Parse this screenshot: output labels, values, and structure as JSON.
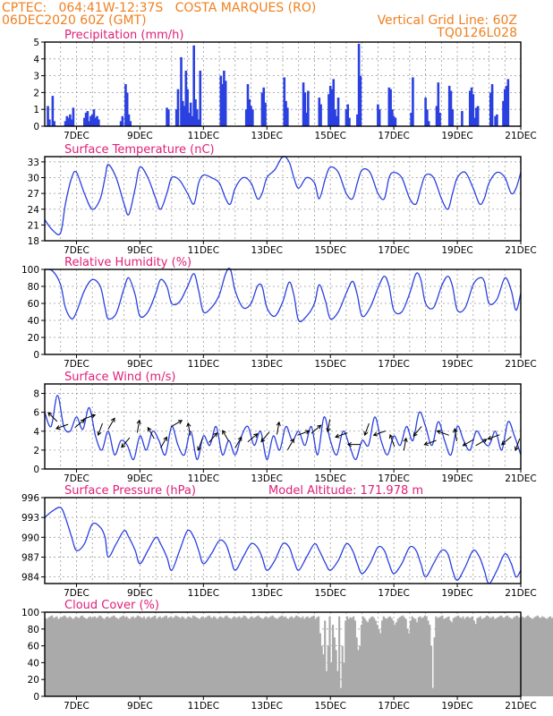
{
  "header": {
    "left_line1": "CPTEC:   064:41W-12:37S   COSTA MARQUES (RO)",
    "left_line2": "06DEC2020 60Z (GMT)",
    "right_line1": "Vertical Grid Line: 60Z",
    "right_line2": "TQ0126L028"
  },
  "colors": {
    "header": "#f08020",
    "title": "#e0207a",
    "line": "#2a40e0",
    "cloud": "#aaaaaa"
  },
  "x_axis": {
    "range": [
      6,
      21
    ],
    "tick_values": [
      7,
      9,
      11,
      13,
      15,
      17,
      19,
      21
    ],
    "tick_labels": [
      "7DEC",
      "9DEC",
      "11DEC",
      "13DEC",
      "15DEC",
      "17DEC",
      "19DEC",
      "21DEC"
    ],
    "grid_step": 0.5
  },
  "chart_data": [
    {
      "type": "bar",
      "title": "Precipitation (mm/h)",
      "ylim": [
        0,
        5
      ],
      "yticks": [
        0,
        1,
        2,
        3,
        4,
        5
      ],
      "x": [
        6.1,
        6.15,
        6.25,
        6.3,
        6.65,
        6.7,
        6.75,
        6.8,
        6.85,
        6.9,
        7.25,
        7.3,
        7.35,
        7.4,
        7.45,
        7.5,
        7.55,
        7.6,
        7.65,
        7.7,
        8.4,
        8.45,
        8.55,
        8.6,
        8.65,
        8.7,
        9.85,
        9.9,
        10.15,
        10.2,
        10.3,
        10.35,
        10.4,
        10.45,
        10.5,
        10.55,
        10.6,
        10.65,
        10.7,
        10.75,
        10.8,
        10.85,
        10.9,
        11.55,
        11.6,
        11.65,
        11.7,
        12.35,
        12.4,
        12.45,
        12.5,
        12.55,
        12.85,
        12.9,
        12.95,
        13.55,
        13.6,
        13.65,
        14.15,
        14.2,
        14.25,
        14.3,
        14.65,
        14.7,
        14.95,
        15.0,
        15.05,
        15.1,
        15.15,
        15.2,
        15.25,
        15.5,
        15.55,
        15.6,
        15.85,
        15.9,
        15.95,
        16.5,
        16.55,
        16.85,
        16.9,
        16.95,
        17.0,
        17.05,
        17.55,
        17.6,
        18.0,
        18.05,
        18.1,
        18.35,
        18.4,
        18.45,
        18.75,
        18.8,
        18.85,
        19.15,
        19.4,
        19.45,
        19.5,
        19.55,
        19.6,
        19.65,
        20.05,
        20.1,
        20.2,
        20.25,
        20.45,
        20.5,
        20.55,
        20.6
      ],
      "values": [
        1.2,
        0.4,
        1.8,
        0.3,
        0.3,
        0.6,
        0.5,
        0.7,
        0.4,
        1.1,
        0.5,
        0.8,
        0.9,
        0.3,
        0.6,
        0.7,
        1.0,
        0.5,
        0.6,
        0.4,
        0.3,
        0.6,
        2.5,
        2.0,
        0.7,
        0.3,
        1.1,
        1.0,
        1.0,
        2.2,
        4.1,
        1.5,
        1.2,
        3.3,
        2.2,
        0.8,
        1.4,
        0.6,
        4.8,
        1.6,
        1.0,
        0.4,
        3.3,
        3.0,
        2.5,
        3.3,
        2.7,
        1.0,
        2.5,
        1.6,
        1.2,
        1.0,
        2.0,
        2.3,
        1.4,
        2.9,
        1.5,
        1.1,
        2.6,
        2.0,
        0.8,
        2.1,
        1.7,
        1.3,
        1.9,
        2.4,
        2.2,
        2.8,
        1.0,
        0.6,
        1.7,
        1.0,
        1.3,
        0.5,
        0.7,
        4.9,
        3.0,
        1.3,
        1.0,
        2.3,
        2.2,
        1.0,
        0.6,
        0.5,
        0.8,
        2.9,
        1.7,
        1.0,
        0.3,
        1.2,
        2.6,
        0.8,
        2.4,
        2.1,
        1.0,
        0.9,
        2.1,
        2.3,
        1.9,
        0.5,
        1.1,
        1.2,
        2.0,
        2.5,
        0.6,
        0.7,
        1.5,
        2.2,
        2.4,
        2.8
      ]
    },
    {
      "type": "line",
      "title": "Surface Temperature (nC)",
      "ylim": [
        18,
        34
      ],
      "yticks": [
        18,
        21,
        24,
        27,
        30,
        33
      ],
      "x": [
        6.0,
        6.25,
        6.5,
        6.65,
        6.85,
        7.0,
        7.25,
        7.5,
        7.75,
        7.9,
        8.0,
        8.25,
        8.5,
        8.65,
        8.85,
        9.0,
        9.25,
        9.5,
        9.65,
        9.85,
        10.0,
        10.25,
        10.5,
        10.7,
        10.85,
        11.0,
        11.25,
        11.5,
        11.7,
        11.85,
        12.0,
        12.25,
        12.5,
        12.7,
        12.85,
        13.0,
        13.25,
        13.5,
        13.7,
        13.85,
        14.0,
        14.25,
        14.5,
        14.65,
        14.85,
        15.0,
        15.25,
        15.5,
        15.7,
        15.85,
        16.0,
        16.25,
        16.5,
        16.7,
        16.85,
        17.0,
        17.25,
        17.5,
        17.7,
        17.85,
        18.0,
        18.25,
        18.5,
        18.7,
        18.85,
        19.0,
        19.25,
        19.5,
        19.7,
        19.85,
        20.0,
        20.25,
        20.5,
        20.7,
        20.85,
        21.0
      ],
      "values": [
        22,
        20,
        19.5,
        25,
        30,
        31,
        27,
        24,
        26,
        30,
        32.5,
        30,
        25,
        23,
        28,
        32,
        30,
        26,
        24,
        27,
        30,
        29.5,
        27,
        25,
        29,
        30.5,
        30,
        29,
        26,
        25,
        28,
        30,
        29,
        26,
        27,
        30,
        31.5,
        34,
        33,
        30,
        28,
        30,
        29,
        26,
        30,
        32,
        31,
        27,
        26,
        29,
        31.5,
        31,
        27,
        26,
        30,
        31,
        30,
        26,
        25,
        28,
        30.5,
        30,
        26,
        24,
        27,
        30,
        31,
        28,
        25,
        26,
        29,
        31,
        30,
        27,
        28,
        31
      ]
    },
    {
      "type": "line",
      "title": "Relative Humidity (%)",
      "ylim": [
        0,
        100
      ],
      "yticks": [
        0,
        20,
        40,
        60,
        80,
        100
      ],
      "x": [
        6.0,
        6.25,
        6.5,
        6.65,
        6.85,
        7.0,
        7.25,
        7.5,
        7.75,
        7.9,
        8.0,
        8.25,
        8.5,
        8.65,
        8.85,
        9.0,
        9.25,
        9.5,
        9.65,
        9.85,
        10.0,
        10.25,
        10.5,
        10.7,
        10.85,
        11.0,
        11.25,
        11.5,
        11.7,
        11.85,
        12.0,
        12.25,
        12.5,
        12.7,
        12.85,
        13.0,
        13.25,
        13.5,
        13.7,
        13.85,
        14.0,
        14.25,
        14.5,
        14.65,
        14.85,
        15.0,
        15.25,
        15.5,
        15.7,
        15.85,
        16.0,
        16.25,
        16.5,
        16.7,
        16.85,
        17.0,
        17.25,
        17.5,
        17.7,
        17.85,
        18.0,
        18.25,
        18.5,
        18.7,
        18.85,
        19.0,
        19.25,
        19.5,
        19.7,
        19.85,
        20.0,
        20.25,
        20.5,
        20.7,
        20.85,
        21.0
      ],
      "values": [
        100,
        98,
        82,
        55,
        42,
        50,
        75,
        88,
        80,
        55,
        42,
        48,
        78,
        90,
        70,
        45,
        50,
        72,
        88,
        80,
        60,
        62,
        80,
        95,
        75,
        50,
        55,
        70,
        95,
        100,
        75,
        55,
        60,
        80,
        80,
        55,
        45,
        62,
        85,
        70,
        40,
        45,
        60,
        82,
        62,
        42,
        50,
        72,
        86,
        70,
        45,
        55,
        78,
        92,
        80,
        52,
        50,
        72,
        95,
        88,
        60,
        55,
        80,
        92,
        80,
        52,
        55,
        82,
        90,
        86,
        60,
        65,
        90,
        75,
        52,
        72
      ]
    },
    {
      "type": "line",
      "title": "Surface Wind (m/s)",
      "ylim": [
        0,
        9
      ],
      "yticks": [
        0,
        2,
        4,
        6,
        8
      ],
      "x": [
        6.0,
        6.2,
        6.4,
        6.6,
        6.8,
        7.0,
        7.2,
        7.4,
        7.6,
        7.8,
        8.0,
        8.2,
        8.4,
        8.6,
        8.8,
        9.0,
        9.2,
        9.4,
        9.6,
        9.8,
        10.0,
        10.2,
        10.4,
        10.6,
        10.8,
        11.0,
        11.2,
        11.4,
        11.6,
        11.8,
        12.0,
        12.2,
        12.4,
        12.6,
        12.8,
        13.0,
        13.2,
        13.4,
        13.6,
        13.8,
        14.0,
        14.2,
        14.4,
        14.6,
        14.8,
        15.0,
        15.2,
        15.4,
        15.6,
        15.8,
        16.0,
        16.2,
        16.4,
        16.6,
        16.8,
        17.0,
        17.2,
        17.4,
        17.6,
        17.8,
        18.0,
        18.2,
        18.4,
        18.6,
        18.8,
        19.0,
        19.2,
        19.4,
        19.6,
        19.8,
        20.0,
        20.2,
        20.4,
        20.6,
        20.8,
        21.0
      ],
      "values": [
        6,
        4.5,
        7.8,
        4.5,
        4,
        5.5,
        4.2,
        6.5,
        3.5,
        2,
        4,
        1.5,
        3,
        2.5,
        1,
        3.5,
        2,
        4,
        3,
        1.5,
        4.5,
        2.5,
        1.5,
        4,
        1,
        3.5,
        2.5,
        4.5,
        1.5,
        3,
        1.5,
        3.5,
        4.5,
        2.5,
        4,
        1,
        3.5,
        2,
        4.5,
        3,
        4,
        2.5,
        4.5,
        1.5,
        5.5,
        3,
        1.5,
        4,
        2.5,
        1,
        3,
        2.5,
        5.5,
        3,
        1.5,
        3.5,
        2.5,
        4.5,
        3,
        6,
        4.5,
        2.5,
        5,
        3,
        1.5,
        4.5,
        3,
        2,
        4,
        3,
        2.5,
        4,
        2,
        5,
        3.5,
        1.5
      ],
      "arrows": {
        "x": [
          6.25,
          6.55,
          7.1,
          7.4,
          7.75,
          8.1,
          8.55,
          8.95,
          9.35,
          9.75,
          10.15,
          10.55,
          10.9,
          11.3,
          11.7,
          12.1,
          12.55,
          12.95,
          13.35,
          13.75,
          14.15,
          14.55,
          14.95,
          15.35,
          15.75,
          16.15,
          16.55,
          16.95,
          17.35,
          17.75,
          18.15,
          18.55,
          18.95,
          19.35,
          19.75,
          20.15,
          20.55,
          20.9
        ],
        "y": [
          5.5,
          4.5,
          4.8,
          5.5,
          4.2,
          4.8,
          2.8,
          4.5,
          3.8,
          2.8,
          4.8,
          4.2,
          2.6,
          3.3,
          3.5,
          2.8,
          3.3,
          3.4,
          4.3,
          2.6,
          3.8,
          4.2,
          4.6,
          3.6,
          2.6,
          4.2,
          3.8,
          3.0,
          2.6,
          4.0,
          2.8,
          3.8,
          3.6,
          2.8,
          2.8,
          3.4,
          3.0,
          2.6
        ],
        "angles": [
          135,
          200,
          40,
          20,
          250,
          60,
          230,
          80,
          120,
          60,
          30,
          100,
          250,
          50,
          120,
          60,
          40,
          230,
          80,
          60,
          20,
          40,
          260,
          200,
          180,
          250,
          200,
          110,
          80,
          230,
          200,
          160,
          100,
          210,
          30,
          200,
          220,
          250
        ]
      }
    },
    {
      "type": "line",
      "title": "Surface Pressure (hPa)",
      "annotation": "Model Altitude: 171.978 m",
      "ylim": [
        983,
        996
      ],
      "yticks": [
        984,
        987,
        990,
        993,
        996
      ],
      "x": [
        6.0,
        6.25,
        6.5,
        6.65,
        6.85,
        7.0,
        7.25,
        7.5,
        7.75,
        7.9,
        8.0,
        8.25,
        8.5,
        8.65,
        8.85,
        9.0,
        9.25,
        9.5,
        9.65,
        9.85,
        10.0,
        10.25,
        10.5,
        10.7,
        10.85,
        11.0,
        11.25,
        11.5,
        11.7,
        11.85,
        12.0,
        12.25,
        12.5,
        12.7,
        12.85,
        13.0,
        13.25,
        13.5,
        13.7,
        13.85,
        14.0,
        14.25,
        14.5,
        14.65,
        14.85,
        15.0,
        15.25,
        15.5,
        15.7,
        15.85,
        16.0,
        16.25,
        16.5,
        16.7,
        16.85,
        17.0,
        17.25,
        17.5,
        17.7,
        17.85,
        18.0,
        18.25,
        18.5,
        18.7,
        18.85,
        19.0,
        19.25,
        19.5,
        19.7,
        19.85,
        20.0,
        20.25,
        20.5,
        20.7,
        20.85,
        21.0
      ],
      "values": [
        993,
        994,
        994.5,
        993,
        990,
        988,
        989,
        992,
        991.5,
        990,
        987,
        989,
        991,
        990,
        988,
        986,
        988,
        990,
        989,
        987,
        985,
        988,
        991,
        990,
        988,
        986,
        987.5,
        989.5,
        989,
        987,
        985,
        987,
        989,
        988.5,
        987,
        985,
        986.5,
        989,
        988.5,
        986.5,
        985,
        987,
        989,
        988,
        986,
        985,
        986.5,
        989,
        988,
        986,
        984.5,
        986,
        988.5,
        988,
        986,
        984.5,
        986,
        988.5,
        988,
        986,
        984,
        986,
        988,
        987.5,
        985,
        983.5,
        985.5,
        988,
        987,
        985,
        983,
        985,
        987.5,
        986,
        984,
        985
      ]
    },
    {
      "type": "bar",
      "title": "Cloud Cover (%)",
      "ylim": [
        0,
        100
      ],
      "yticks": [
        0,
        20,
        40,
        60,
        80,
        100
      ],
      "x_start": 6,
      "x_step": 0.05,
      "values": [
        93,
        92,
        94,
        95,
        96,
        93,
        94,
        95,
        92,
        93,
        94,
        95,
        96,
        94,
        93,
        95,
        94,
        92,
        93,
        95,
        94,
        93,
        95,
        96,
        94,
        93,
        92,
        94,
        95,
        93,
        94,
        95,
        93,
        94,
        96,
        95,
        93,
        92,
        94,
        95,
        93,
        94,
        95,
        96,
        94,
        93,
        92,
        94,
        95,
        96,
        94,
        95,
        93,
        92,
        94,
        95,
        93,
        94,
        96,
        95,
        94,
        93,
        95,
        92,
        94,
        95,
        93,
        94,
        95,
        96,
        92,
        94,
        95,
        93,
        94,
        95,
        96,
        93,
        94,
        95,
        93,
        94,
        96,
        95,
        94,
        93,
        95,
        94,
        92,
        93,
        95,
        94,
        93,
        96,
        95,
        94,
        93,
        92,
        94,
        95,
        93,
        94,
        95,
        96,
        94,
        93,
        95,
        94,
        92,
        93,
        95,
        94,
        93,
        95,
        96,
        94,
        93,
        92,
        94,
        95,
        93,
        94,
        95,
        93,
        94,
        96,
        95,
        93,
        92,
        94,
        95,
        93,
        94,
        95,
        96,
        94,
        93,
        92,
        94,
        95,
        93,
        94,
        95,
        96,
        94,
        93,
        92,
        94,
        95,
        96,
        94,
        95,
        93,
        92,
        94,
        95,
        93,
        94,
        96,
        95,
        94,
        93,
        95,
        92,
        94,
        95,
        93,
        94,
        95,
        96,
        92,
        94,
        95,
        75,
        60,
        50,
        90,
        30,
        60,
        95,
        40,
        85,
        70,
        55,
        30,
        95,
        10,
        60,
        40,
        90,
        95,
        92,
        94,
        93,
        95,
        90,
        70,
        55,
        60,
        85,
        95,
        93,
        90,
        88,
        92,
        94,
        95,
        93,
        90,
        85,
        80,
        75,
        90,
        95,
        93,
        92,
        94,
        95,
        93,
        90,
        85,
        88,
        92,
        94,
        95,
        96,
        94,
        92,
        80,
        75,
        90,
        95,
        93,
        92,
        88,
        94,
        95,
        93,
        94,
        96,
        95,
        90,
        85,
        60,
        10,
        70,
        95,
        93,
        94,
        95,
        96,
        92,
        93,
        94,
        95,
        90,
        88,
        93,
        94,
        95,
        96,
        94,
        93,
        95,
        92,
        94,
        95,
        93,
        94,
        95,
        90,
        86,
        93,
        94,
        95,
        92,
        93,
        94,
        96,
        95,
        93,
        94,
        95,
        92,
        93,
        94,
        95,
        96,
        94,
        93,
        95,
        96,
        94,
        93,
        92,
        94,
        95,
        96,
        94,
        93,
        95,
        94,
        93,
        95,
        96,
        94,
        93,
        92,
        94,
        95,
        96,
        94,
        93,
        95,
        94,
        93,
        92,
        94,
        95,
        93,
        94,
        95,
        96,
        94,
        93,
        95,
        94,
        92,
        94,
        95,
        93,
        94,
        95,
        96
      ]
    }
  ]
}
